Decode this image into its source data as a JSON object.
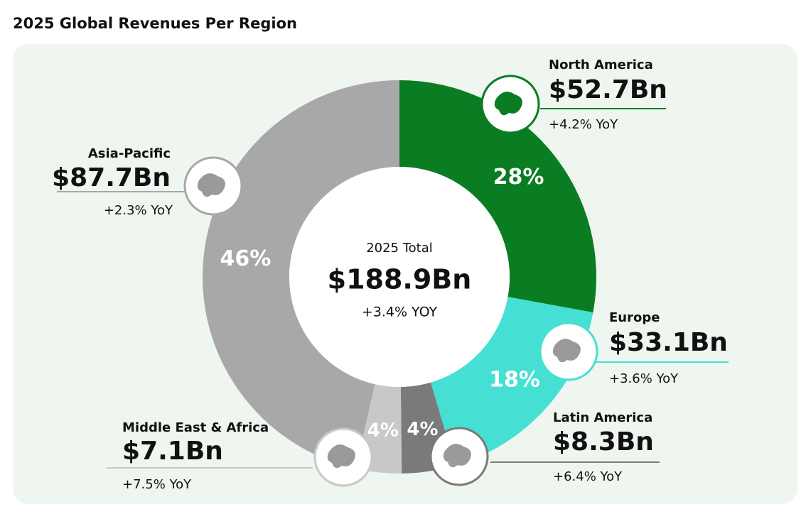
{
  "chart_data": {
    "type": "donut",
    "title": "2025 Global Revenues Per Region",
    "categories": [
      "North America",
      "Europe",
      "Latin America",
      "Middle East & Africa",
      "Asia-Pacific"
    ],
    "values": [
      52.7,
      33.1,
      8.3,
      7.1,
      87.7
    ],
    "value_labels": [
      "$52.7Bn",
      "$33.1Bn",
      "$8.3Bn",
      "$7.1Bn",
      "$87.7Bn"
    ],
    "share_labels": [
      "28%",
      "18%",
      "4%",
      "4%",
      "46%"
    ],
    "yoy_labels": [
      "+4.2% YoY",
      "+3.6% YoY",
      "+6.4% YoY",
      "+7.5% YoY",
      "+2.3% YoY"
    ],
    "colors": [
      "#0a7d23",
      "#45e0d3",
      "#7a7a7a",
      "#c8c8c8",
      "#a8a8a8"
    ],
    "center": {
      "label": "2025 Total",
      "value": "$188.9Bn",
      "change": "+3.4% YOY"
    }
  }
}
